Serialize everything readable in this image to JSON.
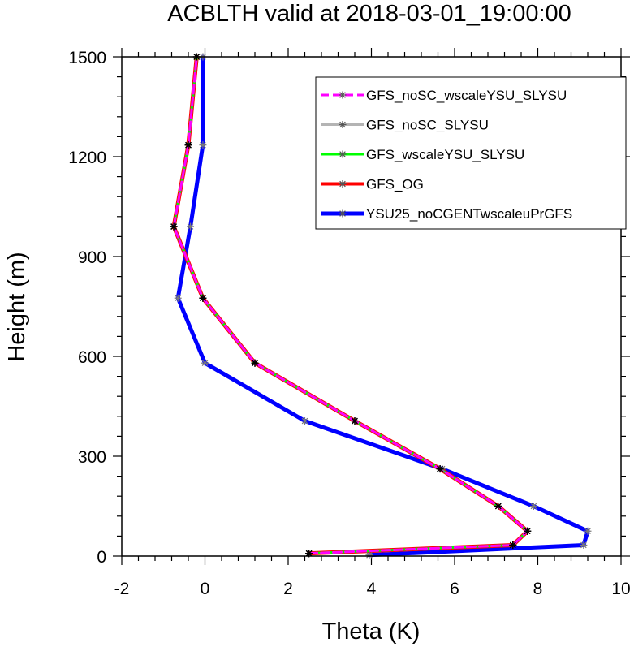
{
  "chart_data": {
    "type": "line",
    "title": "ACBLTH valid at 2018-03-01_19:00:00",
    "xlabel": "Theta (K)",
    "ylabel": "Height (m)",
    "xlim": [
      -2,
      10
    ],
    "ylim": [
      0,
      1500
    ],
    "xticks": [
      "-2",
      "0",
      "2",
      "4",
      "6",
      "8",
      "10"
    ],
    "yticks": [
      "0",
      "300",
      "600",
      "900",
      "1200",
      "1500"
    ],
    "grid": false,
    "legend_position": "top-right",
    "series": [
      {
        "name": "GFS_noSC_wscaleYSU_SLYSU",
        "color": "#ff00ff",
        "style": "dashed",
        "x": [
          2.5,
          7.4,
          7.75,
          7.05,
          5.65,
          3.6,
          1.2,
          -0.05,
          -0.75,
          -0.4,
          -0.2
        ],
        "y": [
          8,
          33,
          75,
          150,
          262,
          406,
          580,
          775,
          990,
          1235,
          1500
        ]
      },
      {
        "name": "GFS_noSC_SLYSU",
        "color": "#b4b4b4",
        "style": "solid",
        "x": [
          2.5,
          7.4,
          7.75,
          7.05,
          5.65,
          3.6,
          1.2,
          -0.05,
          -0.75,
          -0.4,
          -0.2
        ],
        "y": [
          8,
          33,
          75,
          150,
          262,
          406,
          580,
          775,
          990,
          1235,
          1500
        ]
      },
      {
        "name": "GFS_wscaleYSU_SLYSU",
        "color": "#00ff00",
        "style": "solid",
        "x": [
          2.5,
          7.4,
          7.75,
          7.05,
          5.65,
          3.6,
          1.2,
          -0.05,
          -0.75,
          -0.4,
          -0.2
        ],
        "y": [
          8,
          33,
          75,
          150,
          262,
          406,
          580,
          775,
          990,
          1235,
          1500
        ]
      },
      {
        "name": "GFS_OG",
        "color": "#ff0000",
        "style": "solid",
        "x": [
          2.5,
          7.4,
          7.75,
          7.05,
          5.65,
          3.6,
          1.2,
          -0.05,
          -0.75,
          -0.4,
          -0.2
        ],
        "y": [
          8,
          33,
          75,
          150,
          262,
          406,
          580,
          775,
          990,
          1235,
          1500
        ]
      },
      {
        "name": "YSU25_noCGENTwscaleuPrGFS",
        "color": "#0000ff",
        "style": "solid",
        "x": [
          3.95,
          9.1,
          9.2,
          7.9,
          5.7,
          2.4,
          0.0,
          -0.65,
          -0.35,
          -0.05,
          -0.05
        ],
        "y": [
          3,
          33,
          75,
          150,
          262,
          406,
          580,
          775,
          990,
          1235,
          1500
        ]
      }
    ]
  }
}
